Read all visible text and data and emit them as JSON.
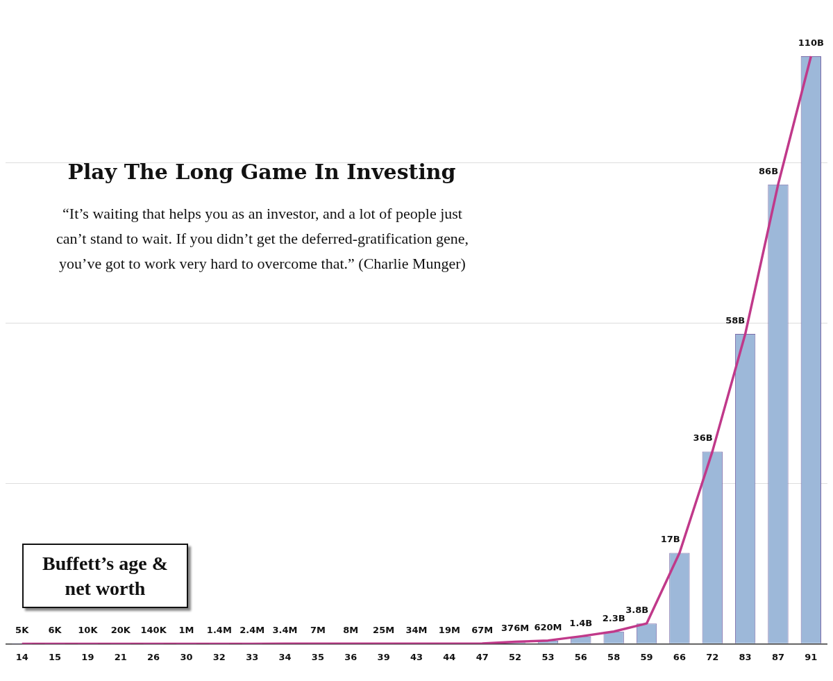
{
  "chart_data": {
    "type": "bar",
    "title": "Play The Long Game In Investing",
    "subtitle": "“It’s waiting that helps you as an investor, and a lot of people just can’t stand to wait. If you didn’t get the deferred-gratification gene, you’ve got to work very hard to overcome that.” (Charlie Munger)",
    "annotations": [
      "Buffett’s age & net worth"
    ],
    "categories": [
      "14",
      "15",
      "19",
      "21",
      "26",
      "30",
      "32",
      "33",
      "34",
      "35",
      "36",
      "39",
      "43",
      "44",
      "47",
      "52",
      "53",
      "56",
      "58",
      "59",
      "66",
      "72",
      "83",
      "87",
      "91"
    ],
    "series": [
      {
        "color": "#9db8d9",
        "values": [
          5000,
          6000,
          10000,
          20000,
          140000,
          1000000,
          1400000,
          2400000,
          3400000,
          7000000,
          8000000,
          25000000,
          34000000,
          19000000,
          67000000,
          376000000,
          620000000,
          1400000000,
          2300000000,
          3800000000,
          17000000000,
          36000000000,
          58000000000,
          86000000000,
          110000000000
        ],
        "value_labels": [
          "5K",
          "6K",
          "10K",
          "20K",
          "140K",
          "1M",
          "1.4M",
          "2.4M",
          "3.4M",
          "7M",
          "8M",
          "25M",
          "34M",
          "19M",
          "67M",
          "376M",
          "620M",
          "1.4B",
          "2.3B",
          "3.8B",
          "17B",
          "36B",
          "58B",
          "86B",
          "110B"
        ]
      },
      {
        "type": "line",
        "color": "#c0398a",
        "values": [
          5000,
          6000,
          10000,
          20000,
          140000,
          1000000,
          1400000,
          2400000,
          3400000,
          7000000,
          8000000,
          25000000,
          34000000,
          19000000,
          67000000,
          376000000,
          620000000,
          1400000000,
          2300000000,
          3800000000,
          17000000000,
          36000000000,
          58000000000,
          86000000000,
          110000000000
        ]
      }
    ],
    "yticks": [
      {
        "value": 0,
        "label": null
      },
      {
        "value": 30000000000,
        "label": null
      },
      {
        "value": 60000000000,
        "label": null
      },
      {
        "value": 90000000000,
        "label": null
      }
    ],
    "tick_labels": "x",
    "grid": "y",
    "legend": false,
    "marker": "none"
  }
}
